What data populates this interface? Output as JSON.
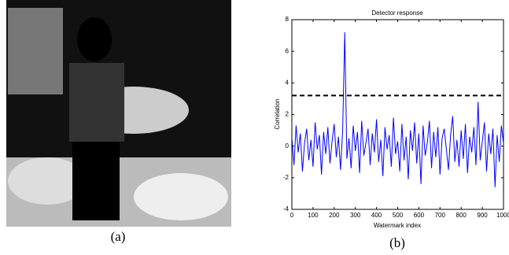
{
  "captions": [
    "(a)",
    "(b)"
  ],
  "chart_data": {
    "type": "line",
    "title": "Detector response",
    "xlabel": "Watermark index",
    "ylabel": "Correlation",
    "x": [
      0,
      10,
      20,
      30,
      40,
      50,
      60,
      70,
      80,
      90,
      100,
      110,
      120,
      130,
      140,
      150,
      160,
      170,
      180,
      190,
      200,
      210,
      220,
      230,
      240,
      250,
      260,
      270,
      280,
      290,
      300,
      310,
      320,
      330,
      340,
      350,
      360,
      370,
      380,
      390,
      400,
      410,
      420,
      430,
      440,
      450,
      460,
      470,
      480,
      490,
      500,
      510,
      520,
      530,
      540,
      550,
      560,
      570,
      580,
      590,
      600,
      610,
      620,
      630,
      640,
      650,
      660,
      670,
      680,
      690,
      700,
      710,
      720,
      730,
      740,
      750,
      760,
      770,
      780,
      790,
      800,
      810,
      820,
      830,
      840,
      850,
      860,
      870,
      880,
      890,
      900,
      910,
      920,
      930,
      940,
      950,
      960,
      970,
      980,
      990,
      1000
    ],
    "values": [
      0.5,
      -1.2,
      1.3,
      -0.4,
      0.8,
      -1.6,
      0.2,
      1.1,
      -0.9,
      0.4,
      -1.3,
      1.5,
      -0.2,
      0.7,
      -1.8,
      0.9,
      -0.5,
      1.2,
      -1.1,
      0.3,
      1.4,
      -0.7,
      0.6,
      -1.5,
      1.0,
      7.2,
      -0.8,
      0.5,
      -1.4,
      1.3,
      -0.3,
      0.9,
      -1.7,
      1.6,
      -0.6,
      0.2,
      1.1,
      -1.2,
      0.8,
      -0.4,
      1.7,
      -1.0,
      0.4,
      -1.9,
      1.2,
      -0.2,
      0.7,
      -1.3,
      1.8,
      -0.5,
      0.3,
      -1.6,
      1.4,
      -0.9,
      0.6,
      -2.1,
      1.0,
      -0.3,
      1.5,
      -1.1,
      0.8,
      -2.4,
      1.3,
      -0.6,
      0.2,
      1.6,
      -1.4,
      0.9,
      -0.7,
      1.2,
      -1.8,
      0.5,
      1.1,
      -0.2,
      -1.5,
      0.7,
      1.9,
      -1.0,
      0.4,
      -1.3,
      1.0,
      -0.8,
      1.4,
      -1.7,
      0.6,
      -0.4,
      1.2,
      -1.2,
      2.8,
      -0.9,
      0.3,
      1.5,
      -1.6,
      0.8,
      -0.5,
      1.1,
      -2.6,
      0.7,
      -1.0,
      1.3,
      0.2
    ],
    "color": "#0000ff",
    "threshold": 3.2,
    "xlim": [
      0,
      1000
    ],
    "xticks": [
      0,
      100,
      200,
      300,
      400,
      500,
      600,
      700,
      800,
      900,
      1000
    ],
    "ylim": [
      -4,
      8
    ],
    "yticks": [
      -4,
      -2,
      0,
      2,
      4,
      6,
      8
    ]
  }
}
